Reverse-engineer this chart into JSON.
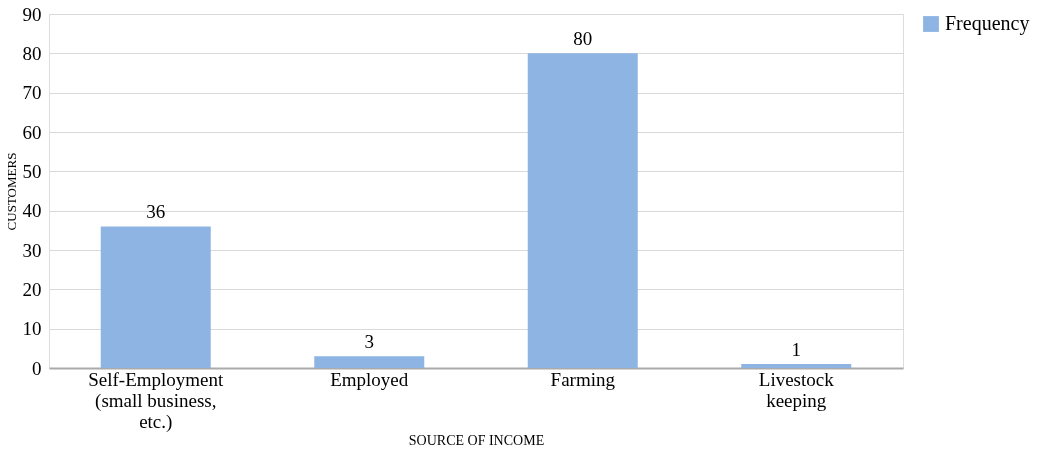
{
  "chart_data": {
    "type": "bar",
    "categories": [
      "Self-Employment (small business, etc.)",
      "Employed",
      "Farming",
      "Livestock keeping"
    ],
    "series": [
      {
        "name": "Frequency",
        "color": "#8db4e2",
        "values": [
          36,
          3,
          80,
          1
        ]
      }
    ],
    "xlabel": "SOURCE OF INCOME",
    "ylabel": "CUSTOMERS",
    "ylim": [
      0,
      90
    ],
    "yticks": [
      0,
      10,
      20,
      30,
      40,
      50,
      60,
      70,
      80,
      90
    ],
    "grid": "y",
    "legend": "right",
    "data_labels": true
  }
}
